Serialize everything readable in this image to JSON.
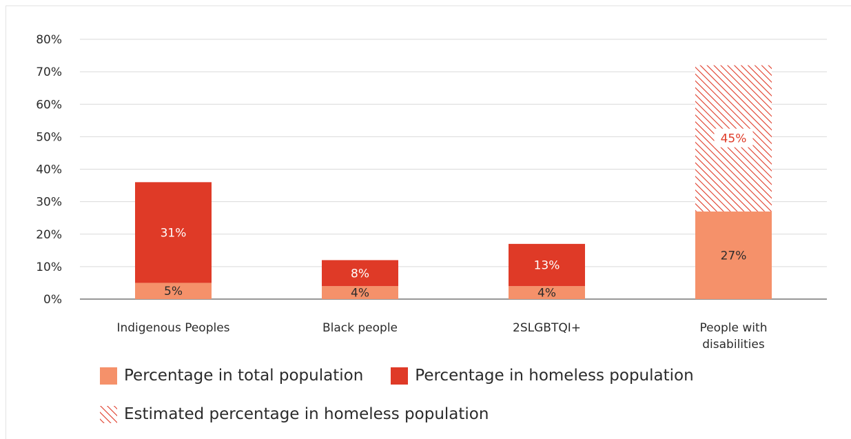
{
  "colors": {
    "total": "#f5916a",
    "homeless": "#df3a27",
    "estimated": "#df3a27"
  },
  "chart_data": {
    "type": "bar",
    "stacked": true,
    "ylim": [
      0,
      80
    ],
    "yticks": [
      "0%",
      "10%",
      "20%",
      "30%",
      "40%",
      "50%",
      "60%",
      "70%",
      "80%"
    ],
    "categories": [
      "Indigenous Peoples",
      "Black people",
      "2SLGBTQI+",
      "People with disabilities"
    ],
    "series": [
      {
        "name": "Percentage in total population",
        "values": [
          5,
          4,
          4,
          27
        ],
        "labels": [
          "5%",
          "4%",
          "4%",
          "27%"
        ]
      },
      {
        "name": "Percentage in homeless population",
        "values": [
          31,
          8,
          13,
          null
        ],
        "labels": [
          "31%",
          "8%",
          "13%",
          ""
        ]
      },
      {
        "name": "Estimated percentage in homeless population",
        "values": [
          null,
          null,
          null,
          45
        ],
        "labels": [
          "",
          "",
          "",
          "45%"
        ]
      }
    ],
    "grid": true,
    "legend_position": "bottom"
  }
}
